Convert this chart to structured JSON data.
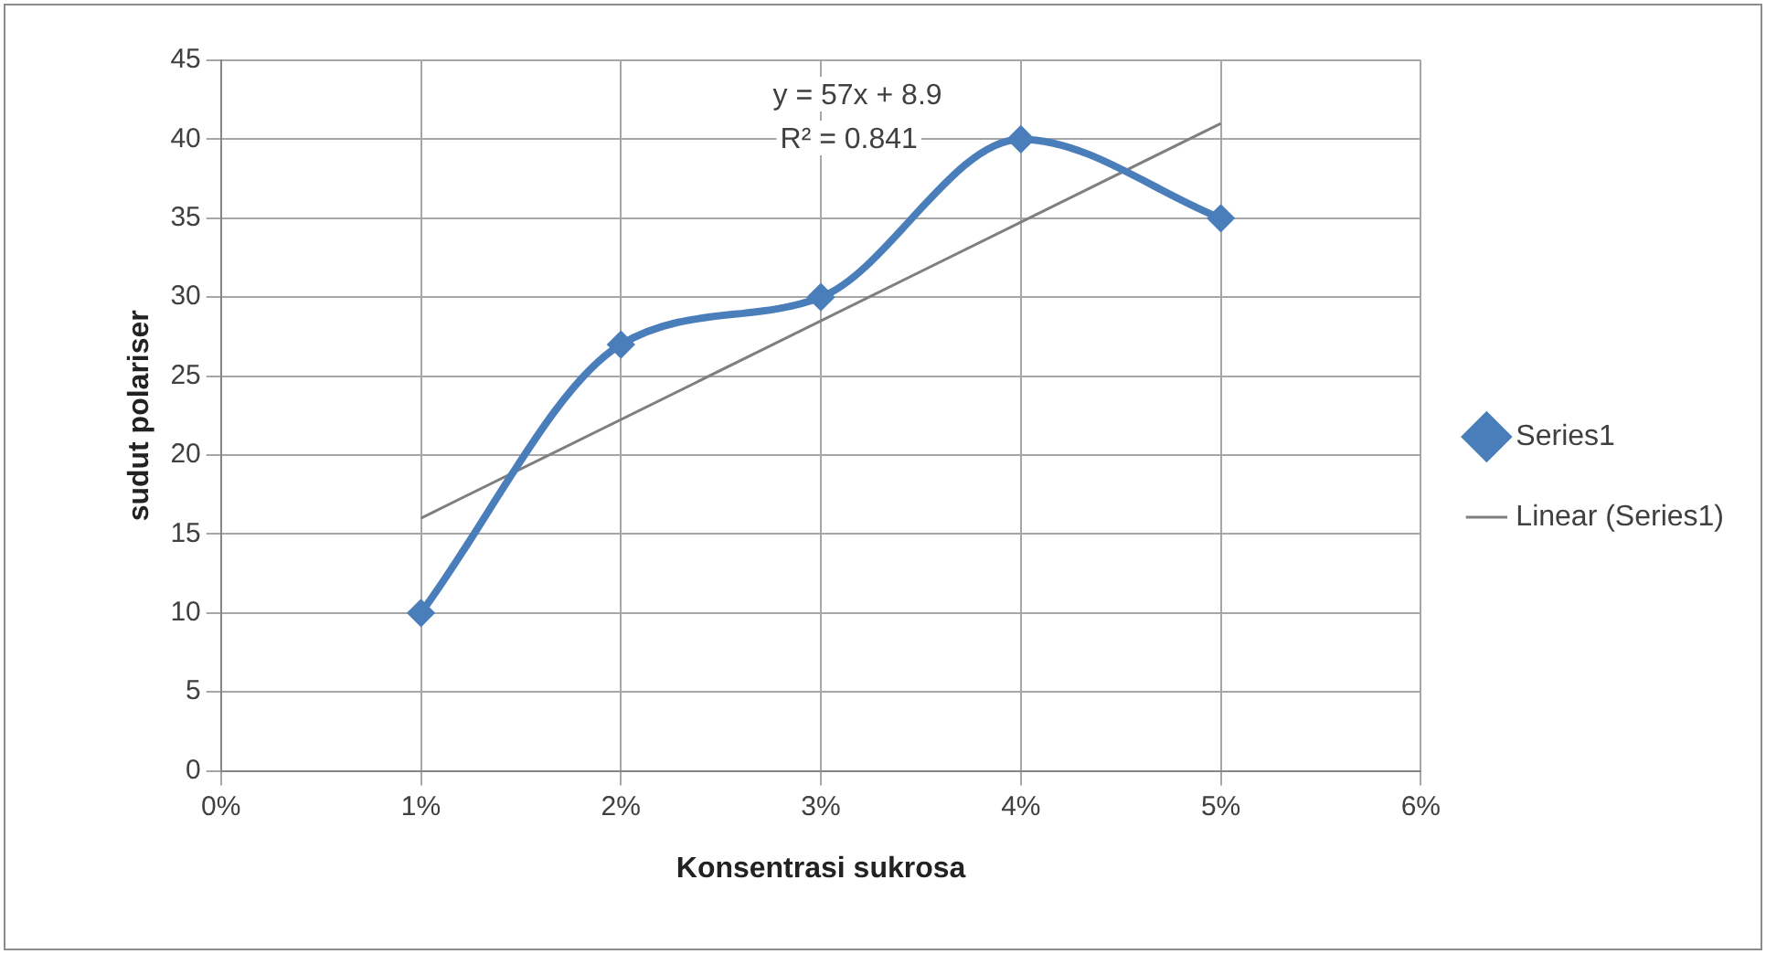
{
  "chart_data": {
    "type": "line",
    "xlabel": "Konsentrasi sukrosa",
    "ylabel": "sudut polariser",
    "x": [
      0.01,
      0.02,
      0.03,
      0.04,
      0.05
    ],
    "series": [
      {
        "name": "Series1",
        "color": "#4a7ebb",
        "values": [
          10,
          27,
          30,
          40,
          35
        ],
        "marker": "diamond"
      },
      {
        "name": "Linear (Series1)",
        "type": "line",
        "color": "#7f7f7f",
        "x": [
          0.01,
          0.05
        ],
        "values": [
          16,
          41
        ],
        "marker": "none"
      }
    ],
    "xlim": [
      0,
      0.06
    ],
    "xticks": [
      {
        "value": 0,
        "label": "0%"
      },
      {
        "value": 0.01,
        "label": "1%"
      },
      {
        "value": 0.02,
        "label": "2%"
      },
      {
        "value": 0.03,
        "label": "3%"
      },
      {
        "value": 0.04,
        "label": "4%"
      },
      {
        "value": 0.05,
        "label": "5%"
      },
      {
        "value": 0.06,
        "label": "6%"
      }
    ],
    "ylim": [
      0,
      45
    ],
    "yticks": [
      0,
      5,
      10,
      15,
      20,
      25,
      30,
      35,
      40,
      45
    ],
    "annotations": [
      "y = 57x + 8.9",
      "R² = 0.841"
    ],
    "grid": true,
    "legend": "right"
  }
}
